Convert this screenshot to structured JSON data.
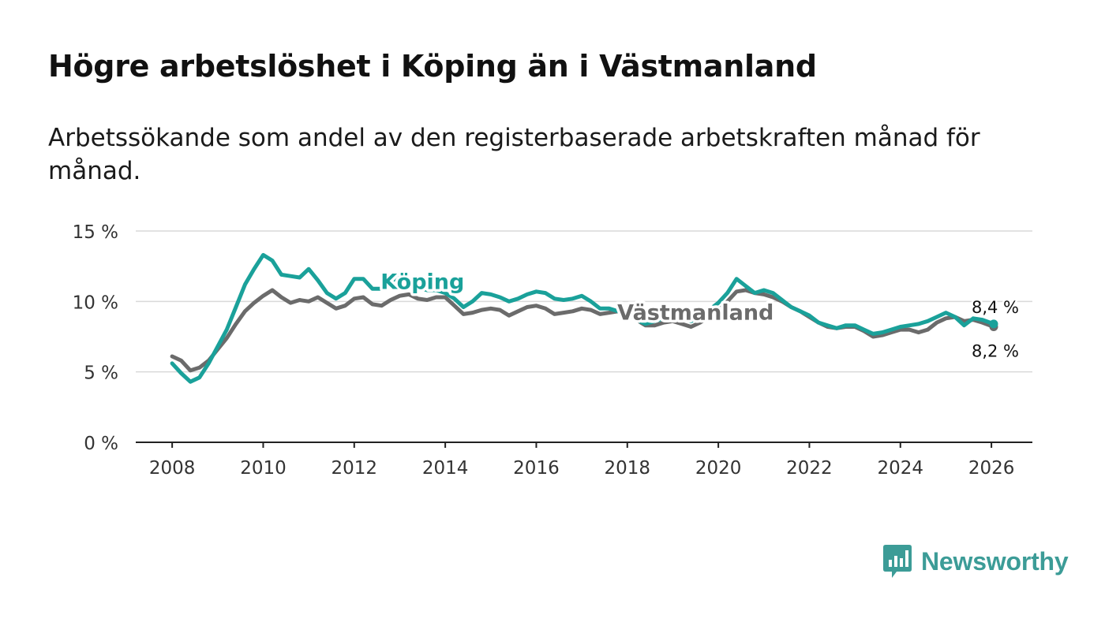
{
  "title": "Högre arbetslöshet i Köping än i Västmanland",
  "subtitle": "Arbetssökande som andel av den registerbaserade arbetskraften månad för månad.",
  "brand": {
    "name": "Newsworthy",
    "icon": "newsworthy-logo-icon",
    "color": "#3c9c97"
  },
  "chart_data": {
    "type": "line",
    "title": "Högre arbetslöshet i Köping än i Västmanland",
    "xlabel": "",
    "ylabel": "",
    "xlim": [
      2007.2,
      2026.9
    ],
    "ylim": [
      0,
      15
    ],
    "grid": true,
    "y_ticks": [
      0,
      5,
      10,
      15
    ],
    "y_tick_labels": [
      "0 %",
      "5 %",
      "10 %",
      "15 %"
    ],
    "x_ticks": [
      2008,
      2010,
      2012,
      2014,
      2016,
      2018,
      2020,
      2022,
      2024,
      2026
    ],
    "x_tick_labels": [
      "2008",
      "2010",
      "2012",
      "2014",
      "2016",
      "2018",
      "2020",
      "2022",
      "2024",
      "2026"
    ],
    "series": [
      {
        "name": "Västmanland",
        "color": "#6b6b6b",
        "label_at": [
          2019.5,
          9.2
        ],
        "end_label": "8,2 %",
        "points": [
          [
            2008.0,
            6.1
          ],
          [
            2008.2,
            5.8
          ],
          [
            2008.4,
            5.1
          ],
          [
            2008.6,
            5.3
          ],
          [
            2008.8,
            5.8
          ],
          [
            2009.0,
            6.6
          ],
          [
            2009.2,
            7.4
          ],
          [
            2009.4,
            8.4
          ],
          [
            2009.6,
            9.3
          ],
          [
            2009.8,
            9.9
          ],
          [
            2010.0,
            10.4
          ],
          [
            2010.2,
            10.8
          ],
          [
            2010.4,
            10.3
          ],
          [
            2010.6,
            9.9
          ],
          [
            2010.8,
            10.1
          ],
          [
            2011.0,
            10.0
          ],
          [
            2011.2,
            10.3
          ],
          [
            2011.4,
            9.9
          ],
          [
            2011.6,
            9.5
          ],
          [
            2011.8,
            9.7
          ],
          [
            2012.0,
            10.2
          ],
          [
            2012.2,
            10.3
          ],
          [
            2012.4,
            9.8
          ],
          [
            2012.6,
            9.7
          ],
          [
            2012.8,
            10.1
          ],
          [
            2013.0,
            10.4
          ],
          [
            2013.2,
            10.5
          ],
          [
            2013.4,
            10.2
          ],
          [
            2013.6,
            10.1
          ],
          [
            2013.8,
            10.3
          ],
          [
            2014.0,
            10.3
          ],
          [
            2014.2,
            9.7
          ],
          [
            2014.4,
            9.1
          ],
          [
            2014.6,
            9.2
          ],
          [
            2014.8,
            9.4
          ],
          [
            2015.0,
            9.5
          ],
          [
            2015.2,
            9.4
          ],
          [
            2015.4,
            9.0
          ],
          [
            2015.6,
            9.3
          ],
          [
            2015.8,
            9.6
          ],
          [
            2016.0,
            9.7
          ],
          [
            2016.2,
            9.5
          ],
          [
            2016.4,
            9.1
          ],
          [
            2016.6,
            9.2
          ],
          [
            2016.8,
            9.3
          ],
          [
            2017.0,
            9.5
          ],
          [
            2017.2,
            9.4
          ],
          [
            2017.4,
            9.1
          ],
          [
            2017.6,
            9.2
          ],
          [
            2017.8,
            9.3
          ],
          [
            2018.0,
            9.1
          ],
          [
            2018.2,
            8.7
          ],
          [
            2018.4,
            8.3
          ],
          [
            2018.6,
            8.3
          ],
          [
            2018.8,
            8.5
          ],
          [
            2019.0,
            8.6
          ],
          [
            2019.2,
            8.4
          ],
          [
            2019.4,
            8.2
          ],
          [
            2019.6,
            8.5
          ],
          [
            2019.8,
            8.9
          ],
          [
            2020.0,
            9.3
          ],
          [
            2020.2,
            10.0
          ],
          [
            2020.4,
            10.7
          ],
          [
            2020.6,
            10.8
          ],
          [
            2020.8,
            10.6
          ],
          [
            2021.0,
            10.5
          ],
          [
            2021.2,
            10.3
          ],
          [
            2021.4,
            10.0
          ],
          [
            2021.6,
            9.6
          ],
          [
            2021.8,
            9.3
          ],
          [
            2022.0,
            8.9
          ],
          [
            2022.2,
            8.5
          ],
          [
            2022.4,
            8.2
          ],
          [
            2022.6,
            8.1
          ],
          [
            2022.8,
            8.2
          ],
          [
            2023.0,
            8.2
          ],
          [
            2023.2,
            7.9
          ],
          [
            2023.4,
            7.5
          ],
          [
            2023.6,
            7.6
          ],
          [
            2023.8,
            7.8
          ],
          [
            2024.0,
            8.0
          ],
          [
            2024.2,
            8.0
          ],
          [
            2024.4,
            7.8
          ],
          [
            2024.6,
            8.0
          ],
          [
            2024.8,
            8.5
          ],
          [
            2025.0,
            8.8
          ],
          [
            2025.2,
            8.9
          ],
          [
            2025.4,
            8.6
          ],
          [
            2025.6,
            8.7
          ],
          [
            2025.8,
            8.5
          ],
          [
            2026.05,
            8.2
          ]
        ]
      },
      {
        "name": "Köping",
        "color": "#1aa19a",
        "label_at": [
          2013.5,
          11.4
        ],
        "end_label": "8,4 %",
        "points": [
          [
            2008.0,
            5.6
          ],
          [
            2008.2,
            4.9
          ],
          [
            2008.4,
            4.3
          ],
          [
            2008.6,
            4.6
          ],
          [
            2008.8,
            5.6
          ],
          [
            2009.0,
            6.8
          ],
          [
            2009.2,
            8.0
          ],
          [
            2009.4,
            9.6
          ],
          [
            2009.6,
            11.2
          ],
          [
            2009.8,
            12.3
          ],
          [
            2010.0,
            13.3
          ],
          [
            2010.2,
            12.9
          ],
          [
            2010.4,
            11.9
          ],
          [
            2010.6,
            11.8
          ],
          [
            2010.8,
            11.7
          ],
          [
            2011.0,
            12.3
          ],
          [
            2011.2,
            11.5
          ],
          [
            2011.4,
            10.6
          ],
          [
            2011.6,
            10.2
          ],
          [
            2011.8,
            10.6
          ],
          [
            2012.0,
            11.6
          ],
          [
            2012.2,
            11.6
          ],
          [
            2012.4,
            10.9
          ],
          [
            2012.6,
            10.9
          ],
          [
            2012.8,
            11.4
          ],
          [
            2013.0,
            11.8
          ],
          [
            2013.2,
            11.5
          ],
          [
            2013.4,
            11.0
          ],
          [
            2013.6,
            10.8
          ],
          [
            2013.8,
            10.8
          ],
          [
            2014.0,
            10.6
          ],
          [
            2014.2,
            10.2
          ],
          [
            2014.4,
            9.6
          ],
          [
            2014.6,
            10.0
          ],
          [
            2014.8,
            10.6
          ],
          [
            2015.0,
            10.5
          ],
          [
            2015.2,
            10.3
          ],
          [
            2015.4,
            10.0
          ],
          [
            2015.6,
            10.2
          ],
          [
            2015.8,
            10.5
          ],
          [
            2016.0,
            10.7
          ],
          [
            2016.2,
            10.6
          ],
          [
            2016.4,
            10.2
          ],
          [
            2016.6,
            10.1
          ],
          [
            2016.8,
            10.2
          ],
          [
            2017.0,
            10.4
          ],
          [
            2017.2,
            10.0
          ],
          [
            2017.4,
            9.5
          ],
          [
            2017.6,
            9.5
          ],
          [
            2017.8,
            9.3
          ],
          [
            2018.0,
            9.1
          ],
          [
            2018.2,
            8.7
          ],
          [
            2018.4,
            8.4
          ],
          [
            2018.6,
            8.6
          ],
          [
            2018.8,
            8.8
          ],
          [
            2019.0,
            8.9
          ],
          [
            2019.2,
            8.8
          ],
          [
            2019.4,
            8.6
          ],
          [
            2019.6,
            8.9
          ],
          [
            2019.8,
            9.4
          ],
          [
            2020.0,
            9.9
          ],
          [
            2020.2,
            10.6
          ],
          [
            2020.4,
            11.6
          ],
          [
            2020.6,
            11.1
          ],
          [
            2020.8,
            10.6
          ],
          [
            2021.0,
            10.8
          ],
          [
            2021.2,
            10.6
          ],
          [
            2021.4,
            10.1
          ],
          [
            2021.6,
            9.6
          ],
          [
            2021.8,
            9.3
          ],
          [
            2022.0,
            9.0
          ],
          [
            2022.2,
            8.5
          ],
          [
            2022.4,
            8.3
          ],
          [
            2022.6,
            8.1
          ],
          [
            2022.8,
            8.3
          ],
          [
            2023.0,
            8.3
          ],
          [
            2023.2,
            8.0
          ],
          [
            2023.4,
            7.7
          ],
          [
            2023.6,
            7.8
          ],
          [
            2023.8,
            8.0
          ],
          [
            2024.0,
            8.2
          ],
          [
            2024.2,
            8.3
          ],
          [
            2024.4,
            8.4
          ],
          [
            2024.6,
            8.6
          ],
          [
            2024.8,
            8.9
          ],
          [
            2025.0,
            9.2
          ],
          [
            2025.2,
            8.9
          ],
          [
            2025.4,
            8.3
          ],
          [
            2025.6,
            8.8
          ],
          [
            2025.8,
            8.7
          ],
          [
            2026.05,
            8.4
          ]
        ]
      }
    ]
  }
}
